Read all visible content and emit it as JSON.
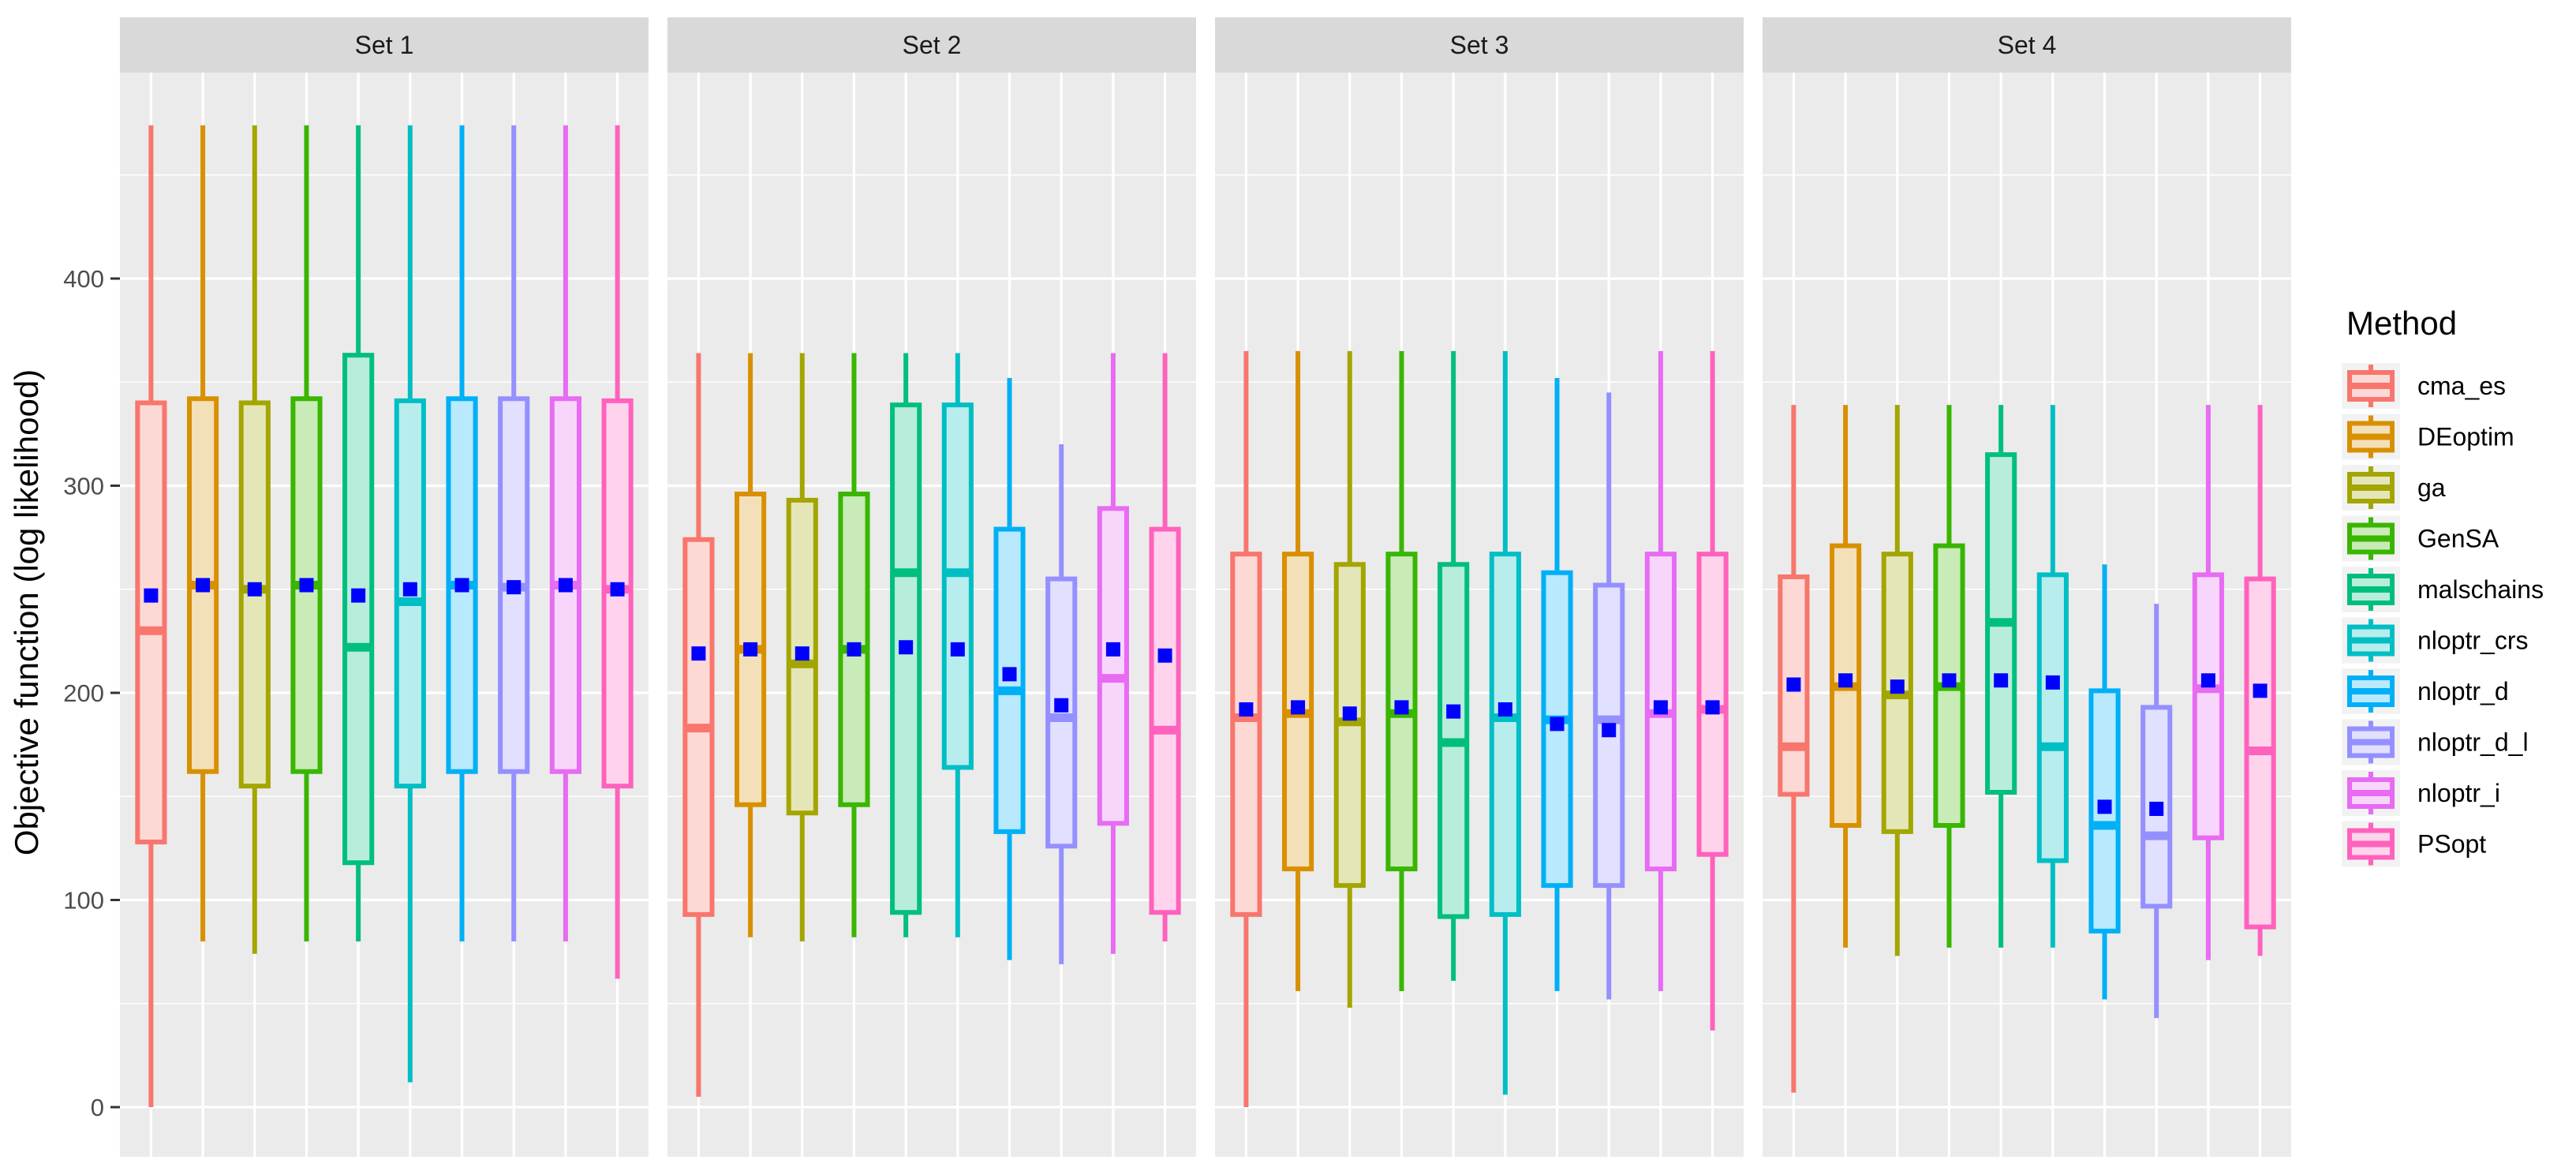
{
  "chart_data": {
    "type": "box",
    "y_axis_title": "Objective function (log likelihood)",
    "y_ticks": [
      0,
      100,
      200,
      300,
      400
    ],
    "ylim": [
      -22,
      500
    ],
    "grid": true,
    "legend": {
      "title": "Method",
      "placement": "right",
      "items": [
        {
          "label": "cma_es",
          "color": "#f8766d"
        },
        {
          "label": "DEoptim",
          "color": "#d89000"
        },
        {
          "label": "ga",
          "color": "#a3a500"
        },
        {
          "label": "GenSA",
          "color": "#39b600"
        },
        {
          "label": "malschains",
          "color": "#00bf7d"
        },
        {
          "label": "nloptr_crs",
          "color": "#00bfc4"
        },
        {
          "label": "nloptr_d",
          "color": "#00b0f6"
        },
        {
          "label": "nloptr_d_l",
          "color": "#9590ff"
        },
        {
          "label": "nloptr_i",
          "color": "#e76bf3"
        },
        {
          "label": "PSopt",
          "color": "#ff62bc"
        }
      ]
    },
    "mean_marker_color": "#0000ff",
    "panels": [
      {
        "label": "Set 1",
        "boxes": [
          {
            "method": "cma_es",
            "min": 0,
            "q1": 128,
            "median": 230,
            "q3": 340,
            "max": 474,
            "mean": 247
          },
          {
            "method": "DEoptim",
            "min": 80,
            "q1": 162,
            "median": 252,
            "q3": 342,
            "max": 474,
            "mean": 252
          },
          {
            "method": "ga",
            "min": 74,
            "q1": 155,
            "median": 250,
            "q3": 340,
            "max": 474,
            "mean": 250
          },
          {
            "method": "GenSA",
            "min": 80,
            "q1": 162,
            "median": 252,
            "q3": 342,
            "max": 474,
            "mean": 252
          },
          {
            "method": "malschains",
            "min": 80,
            "q1": 118,
            "median": 222,
            "q3": 363,
            "max": 474,
            "mean": 247
          },
          {
            "method": "nloptr_crs",
            "min": 12,
            "q1": 155,
            "median": 244,
            "q3": 341,
            "max": 474,
            "mean": 250
          },
          {
            "method": "nloptr_d",
            "min": 80,
            "q1": 162,
            "median": 252,
            "q3": 342,
            "max": 474,
            "mean": 252
          },
          {
            "method": "nloptr_d_l",
            "min": 80,
            "q1": 162,
            "median": 251,
            "q3": 342,
            "max": 474,
            "mean": 251
          },
          {
            "method": "nloptr_i",
            "min": 80,
            "q1": 162,
            "median": 252,
            "q3": 342,
            "max": 474,
            "mean": 252
          },
          {
            "method": "PSopt",
            "min": 62,
            "q1": 155,
            "median": 250,
            "q3": 341,
            "max": 474,
            "mean": 250
          }
        ]
      },
      {
        "label": "Set 2",
        "boxes": [
          {
            "method": "cma_es",
            "min": 5,
            "q1": 93,
            "median": 183,
            "q3": 274,
            "max": 364,
            "mean": 219
          },
          {
            "method": "DEoptim",
            "min": 82,
            "q1": 146,
            "median": 221,
            "q3": 296,
            "max": 364,
            "mean": 221
          },
          {
            "method": "ga",
            "min": 80,
            "q1": 142,
            "median": 214,
            "q3": 293,
            "max": 364,
            "mean": 219
          },
          {
            "method": "GenSA",
            "min": 82,
            "q1": 146,
            "median": 221,
            "q3": 296,
            "max": 364,
            "mean": 221
          },
          {
            "method": "malschains",
            "min": 82,
            "q1": 94,
            "median": 258,
            "q3": 339,
            "max": 364,
            "mean": 222
          },
          {
            "method": "nloptr_crs",
            "min": 82,
            "q1": 164,
            "median": 258,
            "q3": 339,
            "max": 364,
            "mean": 221
          },
          {
            "method": "nloptr_d",
            "min": 71,
            "q1": 133,
            "median": 201,
            "q3": 279,
            "max": 352,
            "mean": 209
          },
          {
            "method": "nloptr_d_l",
            "min": 69,
            "q1": 126,
            "median": 188,
            "q3": 255,
            "max": 320,
            "mean": 194
          },
          {
            "method": "nloptr_i",
            "min": 74,
            "q1": 137,
            "median": 207,
            "q3": 289,
            "max": 364,
            "mean": 221
          },
          {
            "method": "PSopt",
            "min": 80,
            "q1": 94,
            "median": 182,
            "q3": 279,
            "max": 364,
            "mean": 218
          }
        ]
      },
      {
        "label": "Set 3",
        "boxes": [
          {
            "method": "cma_es",
            "min": 0,
            "q1": 93,
            "median": 188,
            "q3": 267,
            "max": 365,
            "mean": 192
          },
          {
            "method": "DEoptim",
            "min": 56,
            "q1": 115,
            "median": 190,
            "q3": 267,
            "max": 365,
            "mean": 193
          },
          {
            "method": "ga",
            "min": 48,
            "q1": 107,
            "median": 186,
            "q3": 262,
            "max": 365,
            "mean": 190
          },
          {
            "method": "GenSA",
            "min": 56,
            "q1": 115,
            "median": 190,
            "q3": 267,
            "max": 365,
            "mean": 193
          },
          {
            "method": "malschains",
            "min": 61,
            "q1": 92,
            "median": 176,
            "q3": 262,
            "max": 365,
            "mean": 191
          },
          {
            "method": "nloptr_crs",
            "min": 6,
            "q1": 93,
            "median": 188,
            "q3": 267,
            "max": 365,
            "mean": 192
          },
          {
            "method": "nloptr_d",
            "min": 56,
            "q1": 107,
            "median": 187,
            "q3": 258,
            "max": 352,
            "mean": 185
          },
          {
            "method": "nloptr_d_l",
            "min": 52,
            "q1": 107,
            "median": 187,
            "q3": 252,
            "max": 345,
            "mean": 182
          },
          {
            "method": "nloptr_i",
            "min": 56,
            "q1": 115,
            "median": 190,
            "q3": 267,
            "max": 365,
            "mean": 193
          },
          {
            "method": "PSopt",
            "min": 37,
            "q1": 122,
            "median": 192,
            "q3": 267,
            "max": 365,
            "mean": 193
          }
        ]
      },
      {
        "label": "Set 4",
        "boxes": [
          {
            "method": "cma_es",
            "min": 7,
            "q1": 151,
            "median": 174,
            "q3": 256,
            "max": 339,
            "mean": 204
          },
          {
            "method": "DEoptim",
            "min": 77,
            "q1": 136,
            "median": 203,
            "q3": 271,
            "max": 339,
            "mean": 206
          },
          {
            "method": "ga",
            "min": 73,
            "q1": 133,
            "median": 199,
            "q3": 267,
            "max": 339,
            "mean": 203
          },
          {
            "method": "GenSA",
            "min": 77,
            "q1": 136,
            "median": 203,
            "q3": 271,
            "max": 339,
            "mean": 206
          },
          {
            "method": "malschains",
            "min": 77,
            "q1": 152,
            "median": 234,
            "q3": 315,
            "max": 339,
            "mean": 206
          },
          {
            "method": "nloptr_crs",
            "min": 77,
            "q1": 119,
            "median": 174,
            "q3": 257,
            "max": 339,
            "mean": 205
          },
          {
            "method": "nloptr_d",
            "min": 52,
            "q1": 85,
            "median": 136,
            "q3": 201,
            "max": 262,
            "mean": 145
          },
          {
            "method": "nloptr_d_l",
            "min": 43,
            "q1": 97,
            "median": 131,
            "q3": 193,
            "max": 243,
            "mean": 144
          },
          {
            "method": "nloptr_i",
            "min": 71,
            "q1": 130,
            "median": 202,
            "q3": 257,
            "max": 339,
            "mean": 206
          },
          {
            "method": "PSopt",
            "min": 73,
            "q1": 87,
            "median": 172,
            "q3": 255,
            "max": 339,
            "mean": 201
          }
        ]
      }
    ]
  }
}
